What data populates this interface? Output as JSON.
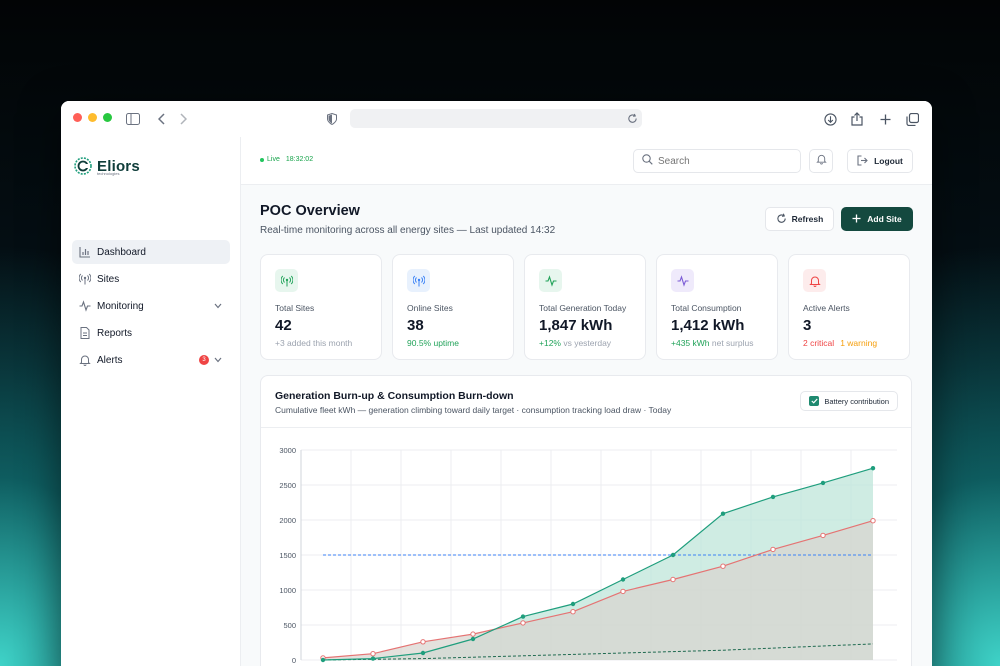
{
  "brand": {
    "name": "Eliors",
    "tagline": "technologies"
  },
  "sidebar": {
    "items": [
      {
        "label": "Dashboard",
        "icon": "bar-chart-icon",
        "active": true
      },
      {
        "label": "Sites",
        "icon": "antenna-icon"
      },
      {
        "label": "Monitoring",
        "icon": "activity-icon",
        "expandable": true
      },
      {
        "label": "Reports",
        "icon": "document-icon"
      },
      {
        "label": "Alerts",
        "icon": "bell-icon",
        "badge": "3",
        "expandable": true
      }
    ]
  },
  "topbar": {
    "live_label": "Live",
    "live_time": "18:32:02",
    "search_placeholder": "Search",
    "logout_label": "Logout"
  },
  "header": {
    "title": "POC Overview",
    "subtitle": "Real-time monitoring across all energy sites — Last updated 14:32",
    "refresh_label": "Refresh",
    "add_site_label": "Add Site"
  },
  "stats": [
    {
      "label": "Total Sites",
      "value": "42",
      "sub_a": "+3 added this month",
      "sub_b": "",
      "icon": "antenna-icon",
      "color": "#22a35a",
      "bg": "#e7f6ee"
    },
    {
      "label": "Online Sites",
      "value": "38",
      "sub_a": "90.5% uptime",
      "sub_b": "",
      "icon": "antenna-icon",
      "color": "#3b82f6",
      "bg": "#e8f1fd"
    },
    {
      "label": "Total Generation Today",
      "value": "1,847 kWh",
      "sub_a": "+12%",
      "sub_b": " vs yesterday",
      "icon": "pulse-icon",
      "color": "#22a35a",
      "bg": "#e7f6ee"
    },
    {
      "label": "Total Consumption",
      "value": "1,412 kWh",
      "sub_a": "+435 kWh",
      "sub_b": " net surplus",
      "icon": "pulse-icon",
      "color": "#7c5cd6",
      "bg": "#efeafb"
    },
    {
      "label": "Active Alerts",
      "value": "3",
      "sub_a": "2 critical",
      "sub_b": "1 warning",
      "icon": "bell-icon",
      "color": "#ef4444",
      "bg": "#fdecec"
    }
  ],
  "chart_card": {
    "title": "Generation Burn-up & Consumption Burn-down",
    "subtitle": "Cumulative fleet kWh — generation climbing toward daily target · consumption tracking load draw · Today",
    "battery_label": "Battery contribution",
    "battery_checked": true
  },
  "chart_data": {
    "type": "area",
    "ylim": [
      0,
      3000
    ],
    "yticks": [
      "0",
      "500",
      "1000",
      "1500",
      "2000",
      "2500",
      "3000"
    ],
    "grid": true,
    "x_count": 12,
    "target": 1500,
    "series": [
      {
        "values": [
          0,
          20,
          100,
          300,
          620,
          800,
          1150,
          1500,
          2090,
          2330,
          2530,
          2740
        ],
        "color": "#1f9e7d",
        "fill": "#bfe6da",
        "marker": "filled"
      },
      {
        "values": [
          30,
          90,
          260,
          370,
          530,
          690,
          980,
          1150,
          1340,
          1580,
          1780,
          1990
        ],
        "color": "#e57373",
        "fill": "#d9d4cf",
        "marker": "hollow"
      },
      {
        "values": [
          0,
          10,
          20,
          40,
          60,
          80,
          100,
          120,
          140,
          170,
          200,
          230
        ],
        "color": "#1f6a50",
        "dashed": true
      }
    ],
    "colors": {
      "generation": "#1f9e7d",
      "consumption": "#e57373",
      "target": "#3b82f6",
      "battery": "#1f6a50"
    }
  }
}
